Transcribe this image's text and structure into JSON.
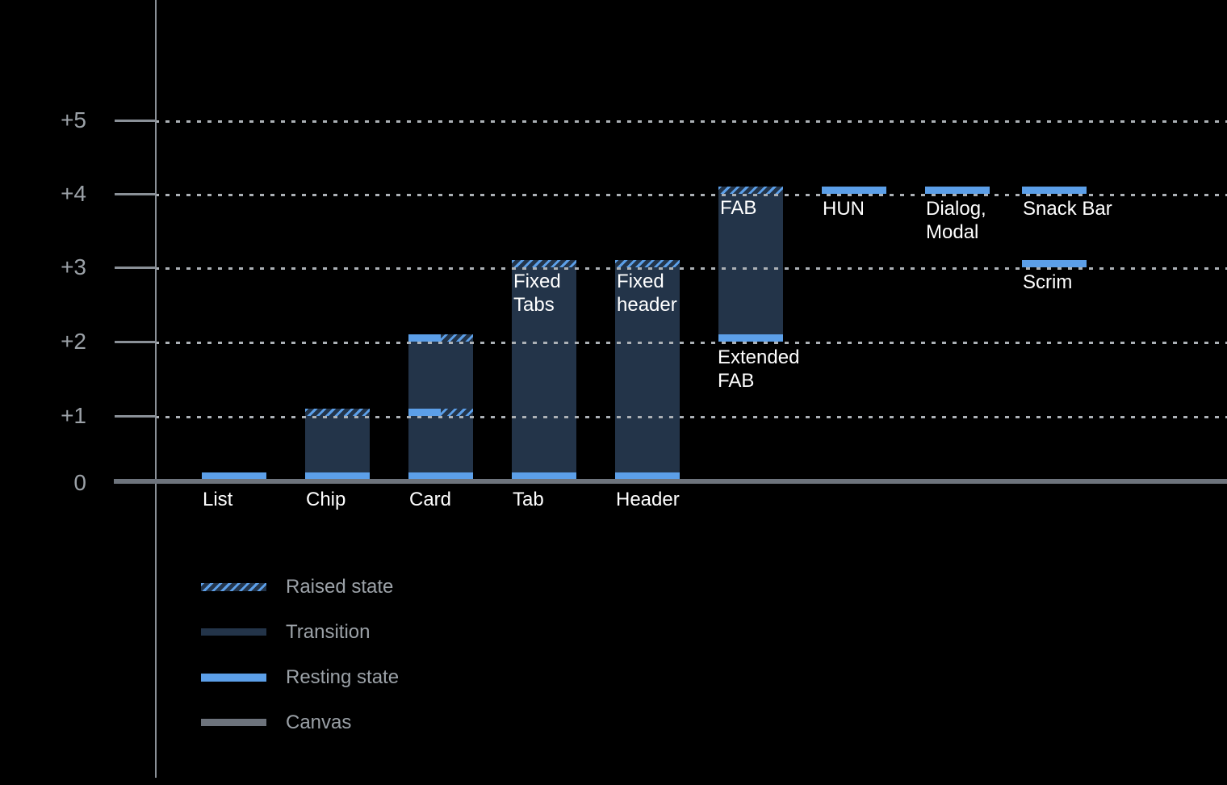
{
  "chart_data": {
    "type": "bar",
    "title": "",
    "xlabel": "",
    "ylabel": "",
    "ylim": [
      0,
      5
    ],
    "grid": "dotted horizontal gridlines, legend bottom-left, dark background",
    "yticks": [
      {
        "label": "+5",
        "level": 5
      },
      {
        "label": "+4",
        "level": 4
      },
      {
        "label": "+3",
        "level": 3
      },
      {
        "label": "+2",
        "level": 2
      },
      {
        "label": "+1",
        "level": 1
      },
      {
        "label": "0",
        "level": 0
      }
    ],
    "components": [
      {
        "name": "list",
        "axis_label": "List",
        "col": 0,
        "base_level": 0,
        "top_level": 0,
        "bands": [
          {
            "level": 0,
            "style": "resting"
          }
        ]
      },
      {
        "name": "chip",
        "axis_label": "Chip",
        "col": 1,
        "base_level": 0,
        "top_level": 1,
        "bands": [
          {
            "level": 1,
            "style": "raised"
          },
          {
            "level": 0,
            "style": "resting"
          }
        ]
      },
      {
        "name": "card",
        "axis_label": "Card",
        "col": 2,
        "base_level": 0,
        "top_level": 2,
        "bands": [
          {
            "level": 2,
            "style": "split"
          },
          {
            "level": 1,
            "style": "split"
          },
          {
            "level": 0,
            "style": "resting"
          }
        ]
      },
      {
        "name": "tab",
        "axis_label": "Tab",
        "inner_label": "Fixed\nTabs",
        "col": 3,
        "base_level": 0,
        "top_level": 3,
        "bands": [
          {
            "level": 3,
            "style": "raised"
          },
          {
            "level": 0,
            "style": "resting"
          }
        ]
      },
      {
        "name": "header",
        "axis_label": "Header",
        "inner_label": "Fixed\nheader",
        "col": 4,
        "base_level": 0,
        "top_level": 3,
        "bands": [
          {
            "level": 3,
            "style": "raised"
          },
          {
            "level": 0,
            "style": "resting"
          }
        ]
      },
      {
        "name": "extended-fab",
        "inner_label": "FAB",
        "below_label": "Extended\nFAB",
        "col": 5,
        "base_level": 2,
        "top_level": 4,
        "bands": [
          {
            "level": 4,
            "style": "raised"
          },
          {
            "level": 2,
            "style": "resting"
          }
        ]
      },
      {
        "name": "hun",
        "label": "HUN",
        "col": 6,
        "floating": true,
        "level": 4
      },
      {
        "name": "dialog-modal",
        "label": "Dialog,\nModal",
        "col": 7,
        "floating": true,
        "level": 4
      },
      {
        "name": "snack-bar",
        "label": "Snack Bar",
        "col": 8,
        "floating": true,
        "level": 4
      },
      {
        "name": "scrim",
        "label": "Scrim",
        "col": 8,
        "floating": true,
        "level": 3
      }
    ],
    "legend": [
      {
        "label": "Raised state",
        "style": "raised"
      },
      {
        "label": "Transition",
        "style": "transition"
      },
      {
        "label": "Resting state",
        "style": "resting"
      },
      {
        "label": "Canvas",
        "style": "canvas"
      }
    ],
    "colors": {
      "background": "#000000",
      "transition": "#233449",
      "resting": "#5C9FE8",
      "raised_hatch": "#5C9FE8 on #233449",
      "canvas": "#6D737C",
      "axis": "#8A9097",
      "gridline": "#ACB1B6",
      "text_primary": "#FFFFFF",
      "text_secondary": "#9BA1A7"
    }
  }
}
